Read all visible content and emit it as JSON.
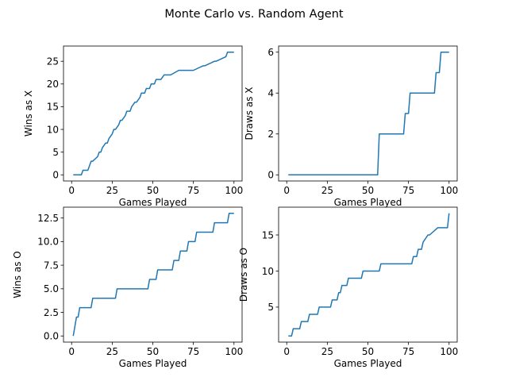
{
  "figure": {
    "title": "Monte Carlo vs. Random Agent"
  },
  "colors": {
    "line": "#1f77b4",
    "axes": "#000000",
    "background": "#ffffff"
  },
  "chart_data": [
    {
      "type": "line",
      "title": "",
      "xlabel": "Games Played",
      "ylabel": "Wins as X",
      "xlim": [
        -5,
        105
      ],
      "ylim": [
        -1.35,
        28.35
      ],
      "xticks": [
        0,
        25,
        50,
        75,
        100
      ],
      "xtick_labels": [
        "0",
        "25",
        "50",
        "75",
        "100"
      ],
      "yticks": [
        0,
        5,
        10,
        15,
        20,
        25
      ],
      "ytick_labels": [
        "0",
        "5",
        "10",
        "15",
        "20",
        "25"
      ],
      "grid": false,
      "series": [
        {
          "x": [
            1,
            6,
            7,
            10,
            11,
            12,
            13,
            16,
            17,
            18,
            19,
            21,
            22,
            23,
            25,
            26,
            27,
            29,
            30,
            31,
            33,
            34,
            36,
            37,
            39,
            40,
            42,
            43,
            45,
            46,
            48,
            49,
            51,
            52,
            54,
            55,
            57,
            60,
            61,
            66,
            67,
            74,
            75,
            81,
            82,
            88,
            89,
            95,
            96,
            100
          ],
          "y": [
            0,
            0,
            1,
            1,
            2,
            3,
            3,
            4,
            5,
            5,
            6,
            7,
            7,
            8,
            9,
            10,
            10,
            11,
            12,
            12,
            13,
            14,
            14,
            15,
            16,
            16,
            17,
            18,
            18,
            19,
            19,
            20,
            20,
            21,
            21,
            21,
            22,
            22,
            22,
            23,
            23,
            23,
            23,
            24,
            24,
            25,
            25,
            26,
            27,
            27
          ]
        }
      ]
    },
    {
      "type": "line",
      "title": "",
      "xlabel": "Games Played",
      "ylabel": "Draws as X",
      "xlim": [
        -5,
        105
      ],
      "ylim": [
        -0.3,
        6.3
      ],
      "xticks": [
        0,
        25,
        50,
        75,
        100
      ],
      "xtick_labels": [
        "0",
        "25",
        "50",
        "75",
        "100"
      ],
      "yticks": [
        0,
        2,
        4,
        6
      ],
      "ytick_labels": [
        "0",
        "2",
        "4",
        "6"
      ],
      "grid": false,
      "series": [
        {
          "x": [
            1,
            56,
            57,
            72,
            73,
            75,
            76,
            91,
            92,
            94,
            95,
            100
          ],
          "y": [
            0,
            0,
            2,
            2,
            3,
            3,
            4,
            4,
            5,
            5,
            6,
            6
          ]
        }
      ]
    },
    {
      "type": "line",
      "title": "",
      "xlabel": "Games Played",
      "ylabel": "Wins as O",
      "xlim": [
        -5,
        105
      ],
      "ylim": [
        -0.65,
        13.65
      ],
      "xticks": [
        0,
        25,
        50,
        75,
        100
      ],
      "xtick_labels": [
        "0",
        "25",
        "50",
        "75",
        "100"
      ],
      "yticks": [
        0,
        2.5,
        5,
        7.5,
        10,
        12.5
      ],
      "ytick_labels": [
        "0.0",
        "2.5",
        "5.0",
        "7.5",
        "10.0",
        "12.5"
      ],
      "grid": false,
      "series": [
        {
          "x": [
            1,
            2,
            3,
            4,
            5,
            12,
            13,
            27,
            28,
            47,
            48,
            52,
            53,
            62,
            63,
            66,
            67,
            71,
            72,
            76,
            77,
            87,
            88,
            96,
            97,
            100
          ],
          "y": [
            0,
            1,
            2,
            2,
            3,
            3,
            4,
            4,
            5,
            5,
            6,
            6,
            7,
            7,
            8,
            8,
            9,
            9,
            10,
            10,
            11,
            11,
            12,
            12,
            13,
            13
          ]
        }
      ]
    },
    {
      "type": "line",
      "title": "",
      "xlabel": "Games Played",
      "ylabel": "Draws as O",
      "xlim": [
        -5,
        105
      ],
      "ylim": [
        0.15,
        18.85
      ],
      "xticks": [
        0,
        25,
        50,
        75,
        100
      ],
      "xtick_labels": [
        "0",
        "25",
        "50",
        "75",
        "100"
      ],
      "yticks": [
        5,
        10,
        15
      ],
      "ytick_labels": [
        "5",
        "10",
        "15"
      ],
      "grid": false,
      "series": [
        {
          "x": [
            1,
            3,
            4,
            8,
            9,
            13,
            14,
            16,
            17,
            19,
            20,
            27,
            28,
            30,
            31,
            32,
            33,
            34,
            35,
            37,
            38,
            46,
            47,
            57,
            58,
            77,
            78,
            80,
            81,
            83,
            84,
            87,
            88,
            93,
            94,
            99,
            100
          ],
          "y": [
            1,
            1,
            2,
            2,
            3,
            3,
            4,
            4,
            4,
            4,
            5,
            5,
            6,
            6,
            6,
            7,
            7,
            8,
            8,
            8,
            9,
            9,
            10,
            10,
            11,
            11,
            12,
            12,
            13,
            13,
            14,
            15,
            15,
            16,
            16,
            16,
            18
          ]
        }
      ]
    }
  ]
}
